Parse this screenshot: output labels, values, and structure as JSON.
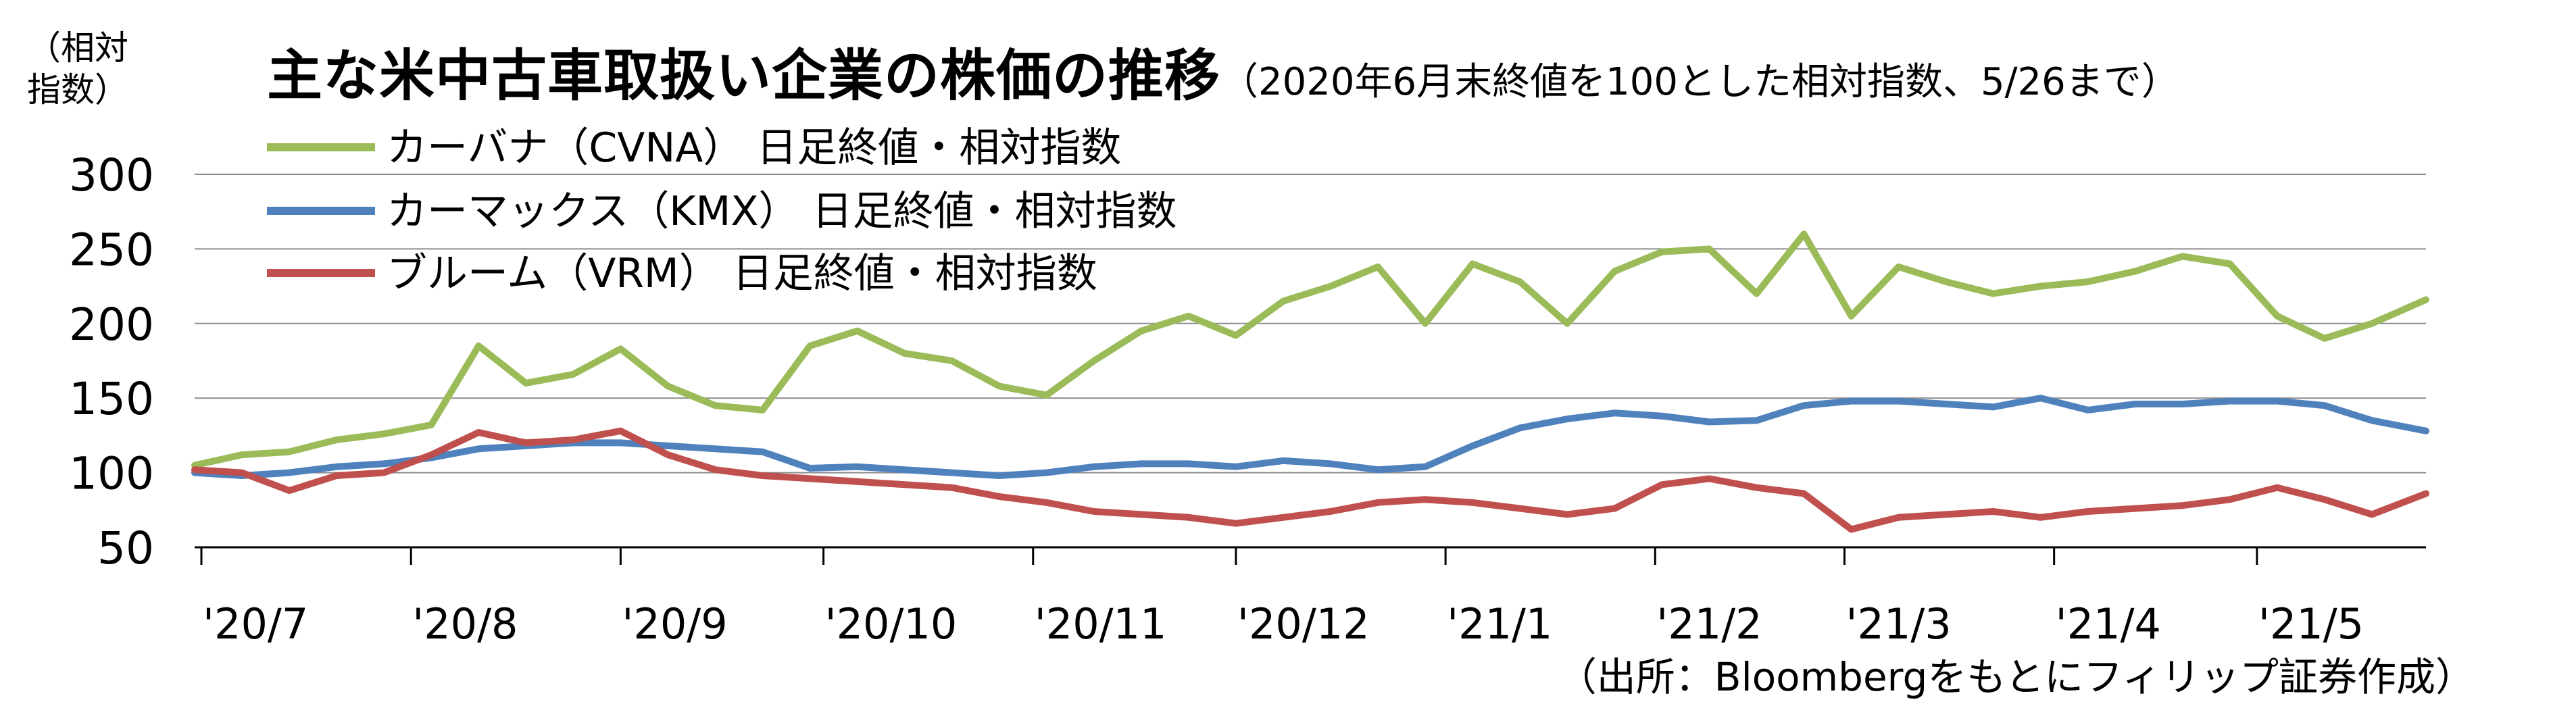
{
  "unit_label": [
    "（相対",
    "指数）"
  ],
  "title_main": "主な米中古車取扱い企業の株価の推移",
  "title_sub": "（2020年6月末終値を100とした相対指数、5/26まで）",
  "source_note": "（出所：Bloombergをもとにフィリップ証券作成）",
  "chart_data": {
    "type": "line",
    "title": "主な米中古車取扱い企業の株価の推移",
    "ylabel": "（相対指数）",
    "ylim": [
      50,
      300
    ],
    "yticks": [
      300,
      250,
      200,
      150,
      100,
      50
    ],
    "grid": true,
    "legend_position": "top-left",
    "x": [
      "2020-06-30",
      "2020-07-07",
      "2020-07-14",
      "2020-07-21",
      "2020-07-28",
      "2020-08-04",
      "2020-08-11",
      "2020-08-18",
      "2020-08-25",
      "2020-09-01",
      "2020-09-08",
      "2020-09-15",
      "2020-09-22",
      "2020-09-29",
      "2020-10-06",
      "2020-10-13",
      "2020-10-20",
      "2020-10-27",
      "2020-11-03",
      "2020-11-10",
      "2020-11-17",
      "2020-11-24",
      "2020-12-01",
      "2020-12-08",
      "2020-12-15",
      "2020-12-22",
      "2020-12-29",
      "2021-01-05",
      "2021-01-12",
      "2021-01-19",
      "2021-01-26",
      "2021-02-02",
      "2021-02-09",
      "2021-02-16",
      "2021-02-23",
      "2021-03-02",
      "2021-03-09",
      "2021-03-16",
      "2021-03-23",
      "2021-03-30",
      "2021-04-06",
      "2021-04-13",
      "2021-04-20",
      "2021-04-27",
      "2021-05-04",
      "2021-05-11",
      "2021-05-18",
      "2021-05-26"
    ],
    "x_tick_labels": [
      "'20/7",
      "'20/8",
      "'20/9",
      "'20/10",
      "'20/11",
      "'20/12",
      "'21/1",
      "'21/2",
      "'21/3",
      "'21/4",
      "'21/5"
    ],
    "series": [
      {
        "name": "カーバナ（CVNA） 日足終値・相対指数",
        "color": "#9bbb59",
        "values": [
          105,
          112,
          114,
          122,
          126,
          132,
          185,
          160,
          166,
          183,
          158,
          145,
          142,
          185,
          195,
          180,
          175,
          158,
          152,
          175,
          195,
          205,
          192,
          215,
          225,
          238,
          200,
          240,
          228,
          200,
          235,
          248,
          250,
          220,
          260,
          205,
          238,
          228,
          220,
          225,
          228,
          235,
          245,
          240,
          205,
          190,
          200,
          216
        ]
      },
      {
        "name": "カーマックス（KMX） 日足終値・相対指数",
        "color": "#4f81bd",
        "values": [
          100,
          98,
          100,
          104,
          106,
          110,
          116,
          118,
          120,
          120,
          118,
          116,
          114,
          103,
          104,
          102,
          100,
          98,
          100,
          104,
          106,
          106,
          104,
          108,
          106,
          102,
          104,
          118,
          130,
          136,
          140,
          138,
          134,
          135,
          145,
          148,
          148,
          146,
          144,
          150,
          142,
          146,
          146,
          148,
          148,
          145,
          135,
          128
        ]
      },
      {
        "name": "ブルーム（VRM） 日足終値・相対指数",
        "color": "#c0504d",
        "values": [
          102,
          100,
          88,
          98,
          100,
          112,
          127,
          120,
          122,
          128,
          112,
          102,
          98,
          96,
          94,
          92,
          90,
          84,
          80,
          74,
          72,
          70,
          66,
          70,
          74,
          80,
          82,
          80,
          76,
          72,
          76,
          92,
          96,
          90,
          86,
          62,
          70,
          72,
          74,
          70,
          74,
          76,
          78,
          82,
          90,
          82,
          72,
          86
        ]
      }
    ]
  }
}
